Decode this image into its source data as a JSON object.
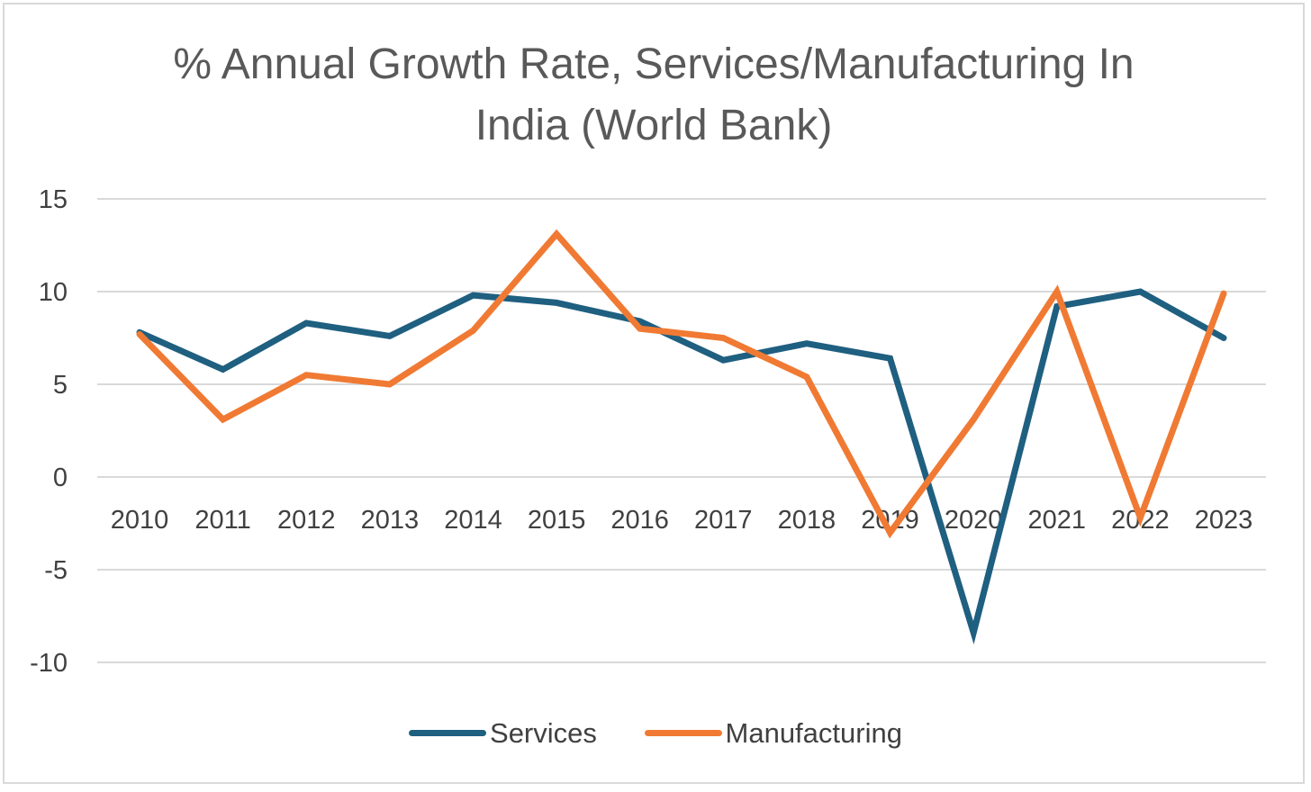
{
  "chart_data": {
    "type": "line",
    "title": "% Annual Growth Rate, Services/Manufacturing In India (World Bank)",
    "xlabel": "",
    "ylabel": "",
    "categories": [
      "2010",
      "2011",
      "2012",
      "2013",
      "2014",
      "2015",
      "2016",
      "2017",
      "2018",
      "2019",
      "2020",
      "2021",
      "2022",
      "2023"
    ],
    "ylim": [
      -10,
      15
    ],
    "yticks": [
      15,
      10,
      5,
      0,
      -5,
      -10
    ],
    "grid": true,
    "legend_position": "bottom",
    "series": [
      {
        "name": "Services",
        "color": "#1f5f80",
        "values": [
          7.8,
          5.8,
          8.3,
          7.6,
          9.8,
          9.4,
          8.4,
          6.3,
          7.2,
          6.4,
          -8.4,
          9.2,
          10.0,
          7.5
        ]
      },
      {
        "name": "Manufacturing",
        "color": "#f07a33",
        "values": [
          7.7,
          3.1,
          5.5,
          5.0,
          7.9,
          13.1,
          8.0,
          7.5,
          5.4,
          -3.0,
          3.1,
          10.0,
          -2.2,
          9.9
        ]
      }
    ]
  }
}
